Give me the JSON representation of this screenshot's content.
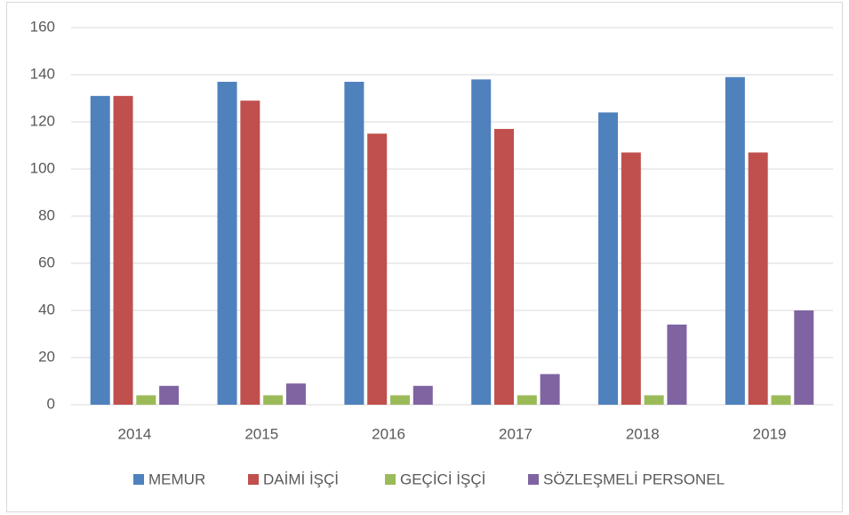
{
  "chart_data": {
    "type": "bar",
    "categories": [
      "2014",
      "2015",
      "2016",
      "2017",
      "2018",
      "2019"
    ],
    "series": [
      {
        "name": "MEMUR",
        "color": "#4f81bd",
        "values": [
          131,
          137,
          137,
          138,
          124,
          139
        ]
      },
      {
        "name": "DAİMİ İŞÇİ",
        "color": "#c0504d",
        "values": [
          131,
          129,
          115,
          117,
          107,
          107
        ]
      },
      {
        "name": "GEÇİCİ İŞÇİ",
        "color": "#9bbb59",
        "values": [
          4,
          4,
          4,
          4,
          4,
          4
        ]
      },
      {
        "name": "SÖZLEŞMELİ PERSONEL",
        "color": "#8064a2",
        "values": [
          8,
          9,
          8,
          13,
          34,
          40
        ]
      }
    ],
    "ylim": [
      0,
      160
    ],
    "yticks": [
      0,
      20,
      40,
      60,
      80,
      100,
      120,
      140,
      160
    ],
    "grid": true,
    "legend": "bottom"
  }
}
